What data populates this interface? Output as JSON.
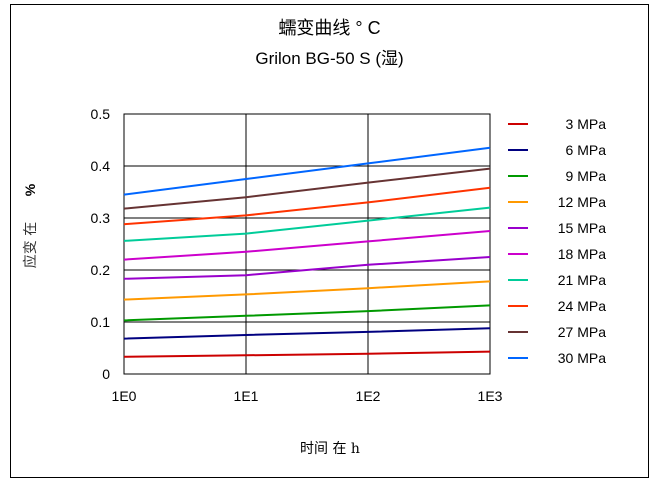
{
  "colors": {
    "3 MPa": "#cc0000",
    "6 MPa": "#000080",
    "9 MPa": "#009900",
    "12 MPa": "#ff9900",
    "15 MPa": "#9900cc",
    "18 MPa": "#cc00cc",
    "21 MPa": "#00cc99",
    "24 MPa": "#ff3300",
    "27 MPa": "#663333",
    "30 MPa": "#0066ff"
  },
  "chart_data": {
    "type": "line",
    "title": "蠕变曲线 ° C",
    "subtitle": "Grilon BG-50 S (湿)",
    "xlabel": "时间 在 h",
    "ylabel": "应变 在",
    "ylabel_unit": "%",
    "x_scale": "log",
    "xlim": [
      1,
      1000
    ],
    "ylim": [
      0,
      0.5
    ],
    "x_ticks": [
      "1E0",
      "1E1",
      "1E2",
      "1E3"
    ],
    "y_ticks": [
      "0",
      "0.1",
      "0.2",
      "0.3",
      "0.4",
      "0.5"
    ],
    "grid": true,
    "legend_position": "right",
    "x": [
      1,
      10,
      100,
      1000
    ],
    "series": [
      {
        "name": "3 MPa",
        "values": [
          0.033,
          0.036,
          0.039,
          0.043
        ]
      },
      {
        "name": "6 MPa",
        "values": [
          0.068,
          0.075,
          0.081,
          0.088
        ]
      },
      {
        "name": "9 MPa",
        "values": [
          0.103,
          0.112,
          0.121,
          0.132
        ]
      },
      {
        "name": "12 MPa",
        "values": [
          0.143,
          0.153,
          0.165,
          0.178
        ]
      },
      {
        "name": "15 MPa",
        "values": [
          0.183,
          0.19,
          0.21,
          0.225
        ]
      },
      {
        "name": "18 MPa",
        "values": [
          0.22,
          0.235,
          0.255,
          0.275
        ]
      },
      {
        "name": "21 MPa",
        "values": [
          0.256,
          0.27,
          0.295,
          0.32
        ]
      },
      {
        "name": "24 MPa",
        "values": [
          0.288,
          0.305,
          0.33,
          0.358
        ]
      },
      {
        "name": "27 MPa",
        "values": [
          0.318,
          0.34,
          0.368,
          0.395
        ]
      },
      {
        "name": "30 MPa",
        "values": [
          0.345,
          0.375,
          0.405,
          0.435
        ]
      }
    ]
  }
}
